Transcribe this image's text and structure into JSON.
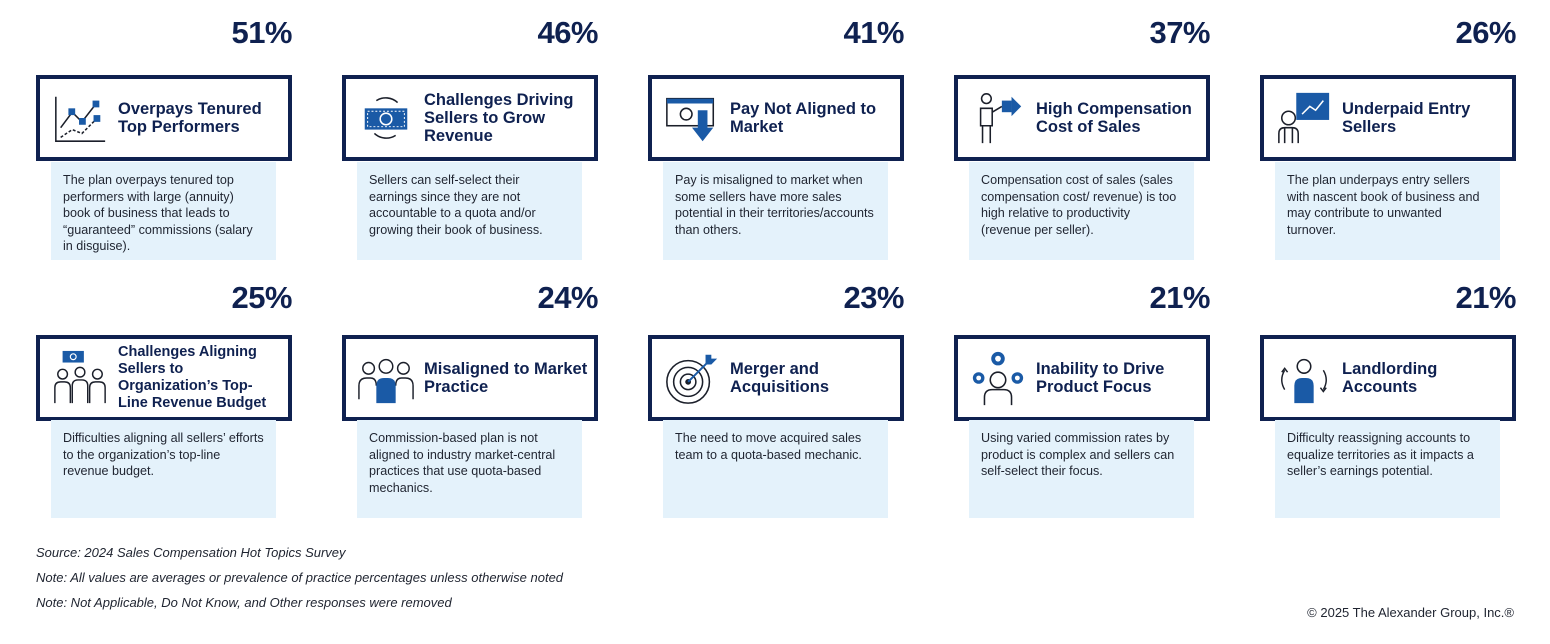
{
  "cards": [
    {
      "percent": "51%",
      "title": "Overpays Tenured Top Performers",
      "icon": "line-chart-icon",
      "description": "The plan overpays tenured top performers with large (annuity) book of business that leads to “guaranteed” commissions (salary in disguise)."
    },
    {
      "percent": "46%",
      "title": "Challenges Driving Sellers to Grow Revenue",
      "icon": "money-cycle-icon",
      "description": "Sellers can self-select their earnings since they are not accountable to a quota and/or growing their book of business."
    },
    {
      "percent": "41%",
      "title": "Pay Not Aligned to Market",
      "icon": "money-down-arrow-icon",
      "description": "Pay is misaligned to market when some sellers have more sales potential in their territories/accounts than others."
    },
    {
      "percent": "37%",
      "title": "High Compensation Cost of Sales",
      "icon": "person-arrow-icon",
      "description": "Compensation cost of sales (sales compensation cost/ revenue) is too high relative to productivity (revenue per seller)."
    },
    {
      "percent": "26%",
      "title": "Underpaid Entry Sellers",
      "icon": "person-presentation-icon",
      "description": "The plan underpays entry sellers with nascent book of business and may contribute to unwanted turnover."
    },
    {
      "percent": "25%",
      "title": "Challenges Aligning Sellers to Organization’s Top-Line Revenue Budget",
      "icon": "group-money-icon",
      "description": "Difficulties aligning all sellers’ efforts to the organization’s top-line revenue budget."
    },
    {
      "percent": "24%",
      "title": "Misaligned to Market Practice",
      "icon": "team-icon",
      "description": "Commission-based plan is not aligned to industry market-central practices that use quota-based mechanics."
    },
    {
      "percent": "23%",
      "title": "Merger and Acquisitions",
      "icon": "target-icon",
      "description": "The need to move acquired sales team to a quota-based mechanic."
    },
    {
      "percent": "21%",
      "title": "Inability to Drive Product Focus",
      "icon": "person-gears-icon",
      "description": "Using varied commission rates by product is complex and sellers can self-select their focus."
    },
    {
      "percent": "21%",
      "title": "Landlording Accounts",
      "icon": "person-rotate-icon",
      "description": "Difficulty reassigning accounts to equalize territories as it impacts a seller’s earnings potential."
    }
  ],
  "notes": {
    "source": "Source: 2024 Sales Compensation Hot Topics Survey",
    "note1": "Note: All values are averages or prevalence of practice percentages unless otherwise noted",
    "note2": "Note: Not Applicable, Do Not Know, and Other responses were removed"
  },
  "copyright": "© 2025 The Alexander Group, Inc.®",
  "colors": {
    "navy": "#0f2150",
    "accent_blue": "#1a5aa6",
    "desc_bg": "#e4f2fb"
  }
}
